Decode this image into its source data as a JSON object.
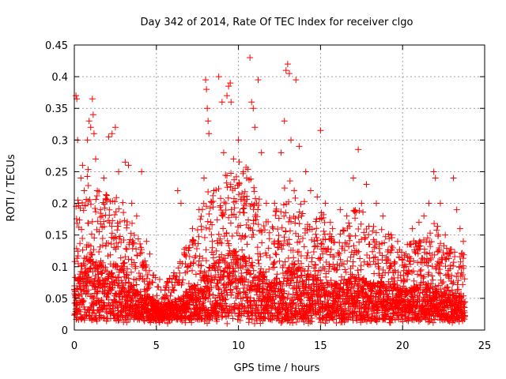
{
  "chart_data": {
    "type": "scatter",
    "title": "Day 342 of 2014, Rate Of TEC Index for receiver clgo",
    "xlabel": "GPS time / hours",
    "ylabel": "ROTI / TECUs",
    "xlim": [
      0,
      25
    ],
    "ylim": [
      0,
      0.45
    ],
    "xticks": [
      0,
      5,
      10,
      15,
      20,
      25
    ],
    "yticks": [
      0,
      0.05,
      0.1,
      0.15,
      0.2,
      0.25,
      0.3,
      0.35,
      0.4,
      0.45
    ],
    "xtick_labels": [
      "0",
      "5",
      "10",
      "15",
      "20",
      "25"
    ],
    "ytick_labels": [
      "0",
      "0.05",
      "0.1",
      "0.15",
      "0.2",
      "0.25",
      "0.3",
      "0.35",
      "0.4",
      "0.45"
    ],
    "grid": true,
    "marker": "+",
    "color": "#ff0000",
    "series": [
      {
        "name": "ROTI",
        "points": [
          [
            0.1,
            0.37
          ],
          [
            0.15,
            0.365
          ],
          [
            0.2,
            0.3
          ],
          [
            0.25,
            0.2
          ],
          [
            0.4,
            0.24
          ],
          [
            0.5,
            0.26
          ],
          [
            0.6,
            0.22
          ],
          [
            0.8,
            0.3
          ],
          [
            0.9,
            0.33
          ],
          [
            1.0,
            0.32
          ],
          [
            1.1,
            0.365
          ],
          [
            1.15,
            0.34
          ],
          [
            1.2,
            0.31
          ],
          [
            1.3,
            0.27
          ],
          [
            1.4,
            0.22
          ],
          [
            1.6,
            0.19
          ],
          [
            1.8,
            0.24
          ],
          [
            2.1,
            0.305
          ],
          [
            2.3,
            0.31
          ],
          [
            2.5,
            0.32
          ],
          [
            2.7,
            0.25
          ],
          [
            3.1,
            0.265
          ],
          [
            3.3,
            0.26
          ],
          [
            3.5,
            0.2
          ],
          [
            3.8,
            0.18
          ],
          [
            4.1,
            0.25
          ],
          [
            4.4,
            0.14
          ],
          [
            4.6,
            0.12
          ],
          [
            5.2,
            0.08
          ],
          [
            5.6,
            0.07
          ],
          [
            6.3,
            0.22
          ],
          [
            6.5,
            0.2
          ],
          [
            6.8,
            0.13
          ],
          [
            7.2,
            0.16
          ],
          [
            7.6,
            0.19
          ],
          [
            7.9,
            0.24
          ],
          [
            8.0,
            0.395
          ],
          [
            8.05,
            0.38
          ],
          [
            8.1,
            0.35
          ],
          [
            8.15,
            0.33
          ],
          [
            8.2,
            0.31
          ],
          [
            8.5,
            0.22
          ],
          [
            8.8,
            0.4
          ],
          [
            9.0,
            0.36
          ],
          [
            9.1,
            0.28
          ],
          [
            9.3,
            0.37
          ],
          [
            9.4,
            0.385
          ],
          [
            9.5,
            0.39
          ],
          [
            9.55,
            0.36
          ],
          [
            9.7,
            0.27
          ],
          [
            10.0,
            0.3
          ],
          [
            10.3,
            0.25
          ],
          [
            10.5,
            0.24
          ],
          [
            10.7,
            0.43
          ],
          [
            10.8,
            0.36
          ],
          [
            10.9,
            0.35
          ],
          [
            11.0,
            0.32
          ],
          [
            11.2,
            0.395
          ],
          [
            11.4,
            0.28
          ],
          [
            11.7,
            0.2
          ],
          [
            12.2,
            0.2
          ],
          [
            12.6,
            0.28
          ],
          [
            12.8,
            0.33
          ],
          [
            12.9,
            0.41
          ],
          [
            13.0,
            0.42
          ],
          [
            13.1,
            0.405
          ],
          [
            13.2,
            0.3
          ],
          [
            13.5,
            0.395
          ],
          [
            13.7,
            0.29
          ],
          [
            14.1,
            0.25
          ],
          [
            14.4,
            0.22
          ],
          [
            14.8,
            0.21
          ],
          [
            15.0,
            0.315
          ],
          [
            15.3,
            0.2
          ],
          [
            15.6,
            0.17
          ],
          [
            16.2,
            0.19
          ],
          [
            16.6,
            0.18
          ],
          [
            17.0,
            0.24
          ],
          [
            17.3,
            0.285
          ],
          [
            17.5,
            0.2
          ],
          [
            17.8,
            0.23
          ],
          [
            18.4,
            0.2
          ],
          [
            18.8,
            0.18
          ],
          [
            19.3,
            0.15
          ],
          [
            19.7,
            0.14
          ],
          [
            20.2,
            0.12
          ],
          [
            20.6,
            0.16
          ],
          [
            21.0,
            0.17
          ],
          [
            21.3,
            0.18
          ],
          [
            21.6,
            0.2
          ],
          [
            21.9,
            0.25
          ],
          [
            22.0,
            0.24
          ],
          [
            22.3,
            0.2
          ],
          [
            22.6,
            0.15
          ],
          [
            22.9,
            0.12
          ],
          [
            23.1,
            0.24
          ],
          [
            23.3,
            0.19
          ],
          [
            23.5,
            0.16
          ],
          [
            23.7,
            0.14
          ]
        ],
        "envelope": {
          "hours": [
            0,
            0.5,
            1,
            1.5,
            2,
            2.5,
            3,
            3.5,
            4,
            4.5,
            5,
            5.5,
            6,
            6.5,
            7,
            7.5,
            8,
            8.5,
            9,
            9.5,
            10,
            10.5,
            11,
            11.5,
            12,
            12.5,
            13,
            13.5,
            14,
            14.5,
            15,
            15.5,
            16,
            16.5,
            17,
            17.5,
            18,
            18.5,
            19,
            19.5,
            20,
            20.5,
            21,
            21.5,
            22,
            22.5,
            23,
            23.5,
            23.8
          ],
          "typical": [
            0.06,
            0.1,
            0.12,
            0.1,
            0.09,
            0.1,
            0.09,
            0.07,
            0.06,
            0.05,
            0.04,
            0.035,
            0.04,
            0.05,
            0.06,
            0.07,
            0.09,
            0.1,
            0.11,
            0.12,
            0.12,
            0.11,
            0.1,
            0.08,
            0.07,
            0.08,
            0.1,
            0.1,
            0.09,
            0.08,
            0.08,
            0.07,
            0.07,
            0.07,
            0.08,
            0.08,
            0.07,
            0.07,
            0.07,
            0.07,
            0.06,
            0.06,
            0.07,
            0.07,
            0.06,
            0.06,
            0.05,
            0.05,
            0.04
          ],
          "upper": [
            0.2,
            0.22,
            0.28,
            0.22,
            0.22,
            0.22,
            0.2,
            0.17,
            0.14,
            0.11,
            0.08,
            0.07,
            0.09,
            0.12,
            0.14,
            0.16,
            0.22,
            0.22,
            0.24,
            0.25,
            0.27,
            0.26,
            0.24,
            0.18,
            0.18,
            0.2,
            0.25,
            0.23,
            0.21,
            0.2,
            0.2,
            0.16,
            0.16,
            0.16,
            0.19,
            0.19,
            0.17,
            0.17,
            0.16,
            0.14,
            0.13,
            0.14,
            0.15,
            0.16,
            0.18,
            0.14,
            0.13,
            0.13,
            0.12
          ]
        }
      }
    ]
  }
}
